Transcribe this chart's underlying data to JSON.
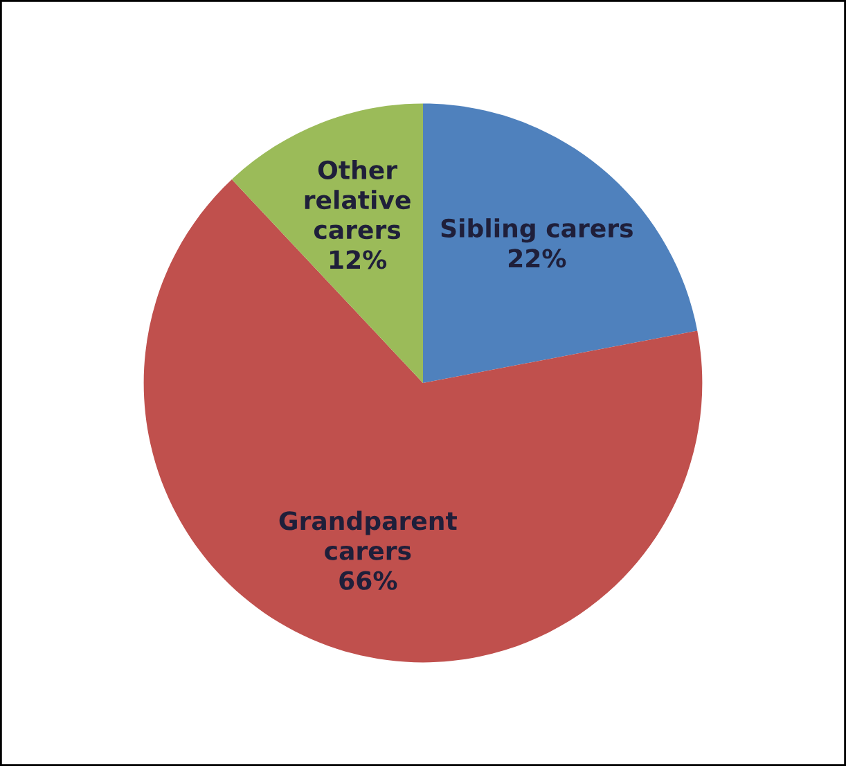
{
  "chart_data": {
    "type": "pie",
    "categories": [
      "Sibling carers",
      "Grandparent\ncarers",
      "Other\nrelative\ncarers"
    ],
    "values": [
      22,
      66,
      12
    ],
    "colors": [
      "#4f81bd",
      "#c0504d",
      "#9bbb59"
    ],
    "value_labels": [
      "22%",
      "66%",
      "12%"
    ],
    "legend": false
  }
}
